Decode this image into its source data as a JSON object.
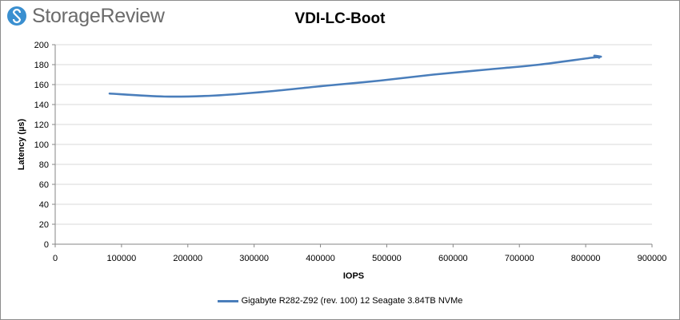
{
  "logo": {
    "text": "StorageReview"
  },
  "chart_data": {
    "type": "line",
    "title": "VDI-LC-Boot",
    "xlabel": "IOPS",
    "ylabel": "Latency (µs)",
    "xlim": [
      0,
      900000
    ],
    "ylim": [
      0,
      200
    ],
    "xticks": [
      0,
      100000,
      200000,
      300000,
      400000,
      500000,
      600000,
      700000,
      800000,
      900000
    ],
    "yticks": [
      0,
      20,
      40,
      60,
      80,
      100,
      120,
      140,
      160,
      180,
      200
    ],
    "grid": "horizontal",
    "legend_position": "bottom",
    "series": [
      {
        "name": "Gigabyte R282-Z92 (rev. 100) 12 Seagate 3.84TB NVMe",
        "color": "#4a7ebb",
        "x": [
          82000,
          165000,
          240000,
          320000,
          410000,
          490000,
          570000,
          650000,
          730000,
          810000,
          820000,
          813000,
          823000
        ],
        "y": [
          151,
          148,
          149,
          153,
          159,
          164,
          170,
          175,
          180,
          187,
          187,
          189,
          188
        ]
      }
    ]
  }
}
